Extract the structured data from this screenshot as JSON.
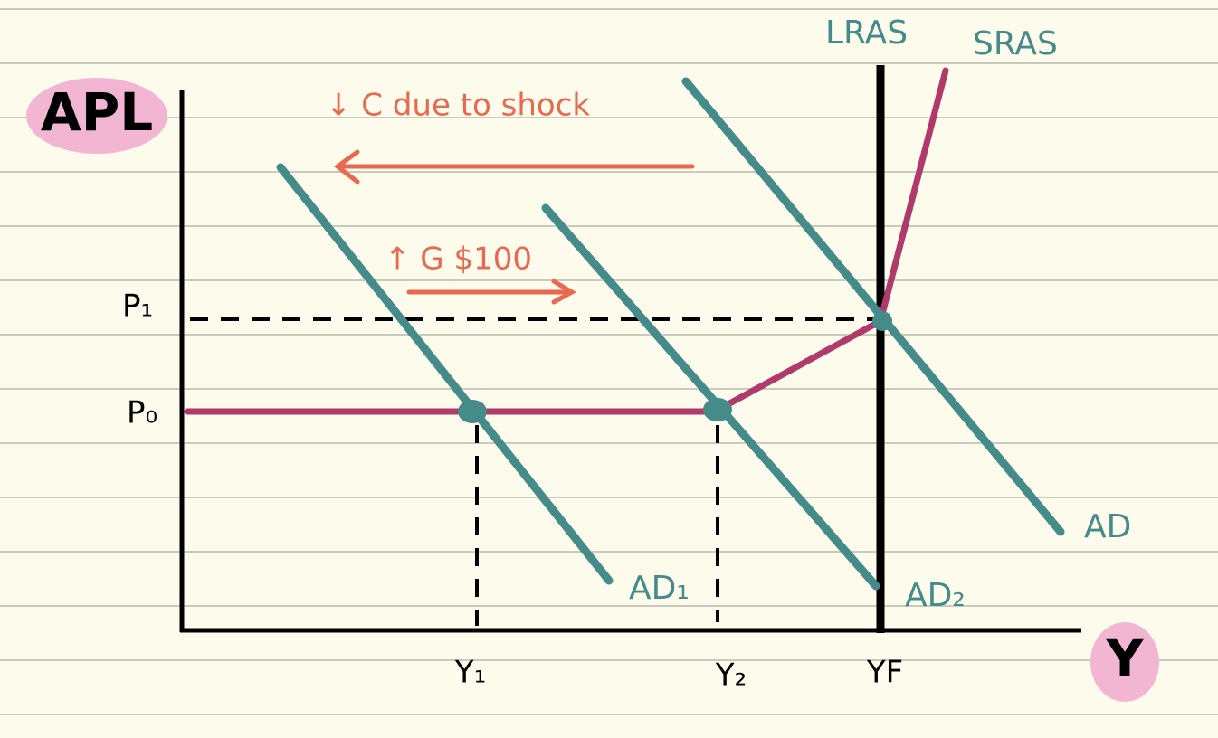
{
  "axes": {
    "y_label": "APL",
    "x_label": "Y"
  },
  "curves": {
    "lras": "LRAS",
    "sras": "SRAS",
    "ad": "AD",
    "ad1": "AD₁",
    "ad2": "AD₂"
  },
  "price_levels": [
    "P₁",
    "P₀"
  ],
  "outputs": [
    "Y₁",
    "Y₂",
    "YF"
  ],
  "annotations": [
    "↓ C due to shock",
    "↑ G $100"
  ]
}
